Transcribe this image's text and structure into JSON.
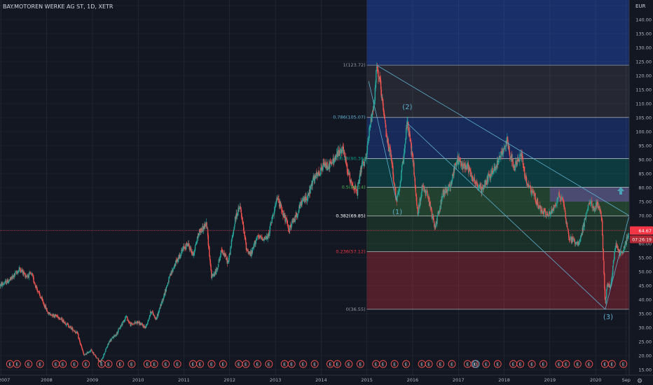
{
  "header": {
    "symbol": "BAY.MOTOREN WERKE AG ST, 1D, XETR",
    "currency": "EUR"
  },
  "price_labels": {
    "last_price": "64.67",
    "countdown": "07:26:19"
  },
  "colors": {
    "background": "#131722",
    "grid": "#2a2e39",
    "candle_up": "#26a69a",
    "candle_down": "#ef5350",
    "fib_line": "#787b86",
    "trendline": "#5dafd0",
    "wave_label": "#5dafd0",
    "fib_0236_text": "#f23645",
    "fib_0382_text": "#ffffff",
    "fib_0786_text": "#5dafd0",
    "price_line": "#f23645",
    "arrow": "#4ba3b7"
  },
  "chart_data": {
    "type": "candlestick",
    "title": "BAY.MOTOREN WERKE AG ST, 1D, XETR",
    "ylabel": "EUR",
    "ylim": [
      13.0,
      147.0
    ],
    "xlim": [
      "2006-12-25",
      "2020-09-25"
    ],
    "y_ticks": [
      "15.00",
      "20.00",
      "25.00",
      "30.00",
      "35.00",
      "40.00",
      "45.00",
      "50.00",
      "55.00",
      "60.00",
      "65.00",
      "70.00",
      "75.00",
      "80.00",
      "85.00",
      "90.00",
      "95.00",
      "100.00",
      "105.00",
      "110.00",
      "115.00",
      "120.00",
      "125.00",
      "130.00",
      "135.00",
      "140.00",
      "145.00"
    ],
    "x_ticks": [
      "2007",
      "2008",
      "2009",
      "2010",
      "2011",
      "2012",
      "2013",
      "2014",
      "2015",
      "2016",
      "2017",
      "2018",
      "2019",
      "2020",
      "Sep"
    ],
    "x_tick_dates": [
      "2007-01-01",
      "2008-01-01",
      "2009-01-01",
      "2010-01-01",
      "2011-01-01",
      "2012-01-01",
      "2013-01-01",
      "2014-01-01",
      "2015-01-01",
      "2016-01-01",
      "2017-01-01",
      "2018-01-01",
      "2019-01-01",
      "2020-01-01",
      "2020-09-01"
    ],
    "price_path": [
      [
        "2006-12-25",
        45.0
      ],
      [
        "2007-03-15",
        47.0
      ],
      [
        "2007-06-01",
        51.0
      ],
      [
        "2007-07-20",
        48.5
      ],
      [
        "2007-09-01",
        49.0
      ],
      [
        "2007-11-01",
        42.0
      ],
      [
        "2008-01-15",
        35.0
      ],
      [
        "2008-04-01",
        34.0
      ],
      [
        "2008-06-15",
        31.0
      ],
      [
        "2008-09-01",
        28.0
      ],
      [
        "2008-10-25",
        20.0
      ],
      [
        "2008-12-20",
        22.0
      ],
      [
        "2009-03-05",
        17.5
      ],
      [
        "2009-05-15",
        25.0
      ],
      [
        "2009-07-15",
        28.0
      ],
      [
        "2009-09-25",
        34.0
      ],
      [
        "2009-11-01",
        31.0
      ],
      [
        "2009-12-25",
        32.0
      ],
      [
        "2010-03-01",
        30.0
      ],
      [
        "2010-04-15",
        36.0
      ],
      [
        "2010-05-25",
        33.0
      ],
      [
        "2010-07-15",
        40.0
      ],
      [
        "2010-09-01",
        47.0
      ],
      [
        "2010-10-15",
        52.0
      ],
      [
        "2010-12-25",
        58.0
      ],
      [
        "2011-02-01",
        60.0
      ],
      [
        "2011-03-15",
        56.0
      ],
      [
        "2011-05-01",
        64.0
      ],
      [
        "2011-07-01",
        67.0
      ],
      [
        "2011-08-10",
        48.0
      ],
      [
        "2011-09-15",
        50.0
      ],
      [
        "2011-11-01",
        58.0
      ],
      [
        "2011-12-20",
        53.0
      ],
      [
        "2012-02-20",
        70.0
      ],
      [
        "2012-03-25",
        73.0
      ],
      [
        "2012-05-15",
        58.0
      ],
      [
        "2012-06-20",
        56.0
      ],
      [
        "2012-08-01",
        62.0
      ],
      [
        "2012-09-15",
        62.0
      ],
      [
        "2012-11-01",
        62.0
      ],
      [
        "2012-12-20",
        72.0
      ],
      [
        "2013-01-20",
        76.0
      ],
      [
        "2013-04-20",
        65.0
      ],
      [
        "2013-06-15",
        70.0
      ],
      [
        "2013-08-01",
        75.0
      ],
      [
        "2013-09-20",
        77.0
      ],
      [
        "2013-11-01",
        83.0
      ],
      [
        "2013-12-20",
        85.0
      ],
      [
        "2014-01-20",
        88.0
      ],
      [
        "2014-03-15",
        88.0
      ],
      [
        "2014-05-15",
        92.0
      ],
      [
        "2014-06-20",
        94.0
      ],
      [
        "2014-08-10",
        84.0
      ],
      [
        "2014-10-15",
        78.0
      ],
      [
        "2014-11-20",
        88.0
      ],
      [
        "2014-12-15",
        88.0
      ],
      [
        "2015-01-20",
        100.0
      ],
      [
        "2015-03-05",
        113.0
      ],
      [
        "2015-03-20",
        123.7
      ],
      [
        "2015-04-15",
        117.0
      ],
      [
        "2015-06-01",
        100.0
      ],
      [
        "2015-07-15",
        90.0
      ],
      [
        "2015-08-24",
        75.5
      ],
      [
        "2015-09-20",
        79.0
      ],
      [
        "2015-10-15",
        90.0
      ],
      [
        "2015-11-20",
        103.0
      ],
      [
        "2015-12-05",
        99.0
      ],
      [
        "2016-01-10",
        87.0
      ],
      [
        "2016-02-10",
        70.0
      ],
      [
        "2016-03-15",
        80.0
      ],
      [
        "2016-05-01",
        77.0
      ],
      [
        "2016-06-24",
        66.0
      ],
      [
        "2016-07-10",
        68.0
      ],
      [
        "2016-09-01",
        78.0
      ],
      [
        "2016-10-20",
        80.0
      ],
      [
        "2016-12-20",
        90.0
      ],
      [
        "2017-02-01",
        88.0
      ],
      [
        "2017-03-15",
        88.0
      ],
      [
        "2017-05-01",
        83.0
      ],
      [
        "2017-07-01",
        79.0
      ],
      [
        "2017-09-01",
        84.0
      ],
      [
        "2017-11-01",
        88.0
      ],
      [
        "2018-01-23",
        97.0
      ],
      [
        "2018-03-20",
        87.0
      ],
      [
        "2018-05-20",
        92.0
      ],
      [
        "2018-06-25",
        82.0
      ],
      [
        "2018-08-15",
        78.0
      ],
      [
        "2018-10-20",
        72.0
      ],
      [
        "2018-12-20",
        70.0
      ],
      [
        "2019-01-10",
        71.0
      ],
      [
        "2019-03-15",
        77.0
      ],
      [
        "2019-04-15",
        76.0
      ],
      [
        "2019-06-01",
        62.0
      ],
      [
        "2019-08-15",
        60.0
      ],
      [
        "2019-09-15",
        64.0
      ],
      [
        "2019-10-15",
        70.0
      ],
      [
        "2019-11-15",
        75.0
      ],
      [
        "2019-12-20",
        72.0
      ],
      [
        "2020-01-15",
        75.0
      ],
      [
        "2020-02-20",
        68.0
      ],
      [
        "2020-03-18",
        37.5
      ],
      [
        "2020-04-01",
        45.0
      ],
      [
        "2020-05-01",
        45.0
      ],
      [
        "2020-06-08",
        60.0
      ],
      [
        "2020-07-01",
        57.0
      ],
      [
        "2020-08-01",
        56.0
      ],
      [
        "2020-09-15",
        63.0
      ],
      [
        "2020-09-25",
        64.67
      ]
    ],
    "last_price": 64.67,
    "fibonacci": {
      "start": "2015-01-01",
      "levels": [
        {
          "label": "1(123.72)",
          "value": 123.72
        },
        {
          "label": "0.786(105.07)",
          "value": 105.07
        },
        {
          "label": "0.618(90.36)",
          "value": 90.36
        },
        {
          "label": "0.5(80.14)",
          "value": 80.14
        },
        {
          "label": "0.382(69.85)",
          "value": 69.85
        },
        {
          "label": "0.236(57.12)",
          "value": 57.12
        },
        {
          "label": "0(36.55)",
          "value": 36.55
        }
      ]
    },
    "wave_labels": [
      {
        "text": "(1)",
        "date": "2015-09-01",
        "price": 70.5
      },
      {
        "text": "(2)",
        "date": "2015-11-20",
        "price": 108.0
      },
      {
        "text": "(3)",
        "date": "2020-04-10",
        "price": 33.0
      }
    ],
    "trendlines": [
      {
        "from": [
          "2015-03-20",
          123.72
        ],
        "to": [
          "2020-09-25",
          70.0
        ]
      },
      {
        "from": [
          "2015-11-20",
          103.0
        ],
        "to": [
          "2020-03-18",
          36.55
        ]
      },
      {
        "from": [
          "2015-01-15",
          118.0
        ],
        "to": [
          "2015-08-24",
          75.5
        ]
      },
      {
        "from": [
          "2020-03-18",
          36.55
        ],
        "to": [
          "2020-09-25",
          70.0
        ]
      }
    ],
    "target_box": {
      "from": [
        "2019-01-01",
        75.0
      ],
      "to": [
        "2020-09-25",
        80.0
      ]
    },
    "earnings_markers": {
      "label": "E",
      "dividend_label": "D",
      "dates": [
        "2007-01-01",
        "2007-03-15",
        "2007-05-10",
        "2007-08-10",
        "2007-11-10",
        "2008-03-15",
        "2008-05-10",
        "2008-08-10",
        "2008-11-10",
        "2009-03-15",
        "2009-05-10",
        "2009-08-10",
        "2009-11-10",
        "2010-03-15",
        "2010-05-10",
        "2010-08-10",
        "2010-11-10",
        "2011-03-15",
        "2011-05-10",
        "2011-08-10",
        "2011-11-10",
        "2012-03-15",
        "2012-05-10",
        "2012-08-10",
        "2012-11-10",
        "2013-03-15",
        "2013-05-10",
        "2013-08-10",
        "2013-11-10",
        "2014-03-15",
        "2014-05-10",
        "2014-08-10",
        "2014-11-10",
        "2015-03-15",
        "2015-05-10",
        "2015-08-10",
        "2015-11-10",
        "2016-03-15",
        "2016-05-10",
        "2016-08-10",
        "2016-11-10",
        "2017-03-15",
        "2017-05-10",
        "2017-08-10",
        "2017-11-10",
        "2018-03-15",
        "2018-05-10",
        "2018-08-10",
        "2018-11-10",
        "2019-03-15",
        "2019-05-10",
        "2019-08-10",
        "2019-11-10",
        "2020-03-15",
        "2020-05-10",
        "2020-08-10"
      ],
      "dividend_dates": [
        "2017-05-20"
      ]
    }
  }
}
